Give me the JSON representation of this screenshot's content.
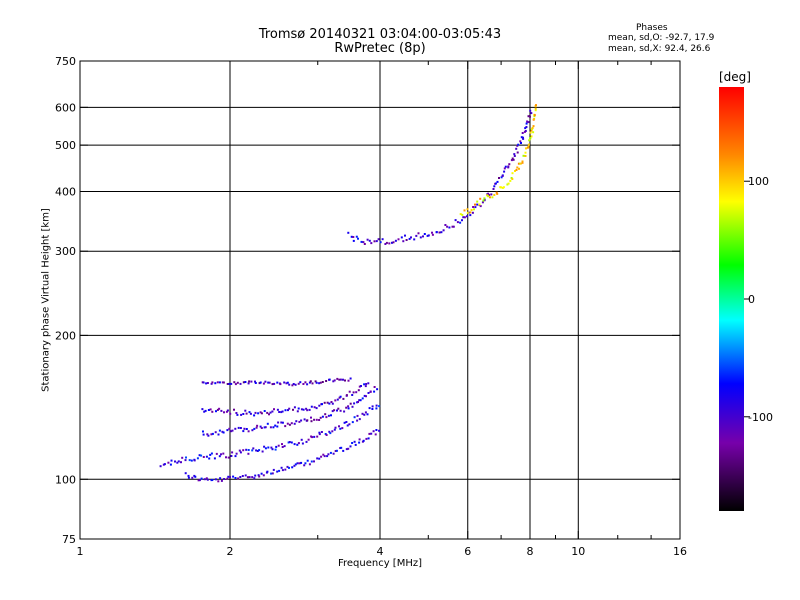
{
  "chart_data": {
    "type": "scatter",
    "title": "Tromsø 20140321 03:04:00-03:05:43",
    "subtitle": "RwPretec (8p)",
    "xlabel": "Frequency [MHz]",
    "ylabel": "Stationary phase Virtual Height [km]",
    "x_scale": "log",
    "y_scale": "log",
    "xlim": [
      1,
      16
    ],
    "ylim": [
      75,
      750
    ],
    "x_ticks": [
      {
        "value": 1,
        "label": "1"
      },
      {
        "value": 2,
        "label": "2"
      },
      {
        "value": 4,
        "label": "4"
      },
      {
        "value": 6,
        "label": "6"
      },
      {
        "value": 8,
        "label": "8"
      },
      {
        "value": 10,
        "label": "10"
      },
      {
        "value": 16,
        "label": "16"
      }
    ],
    "x_minor": [
      3,
      5,
      7,
      9,
      12,
      14
    ],
    "x_grid": [
      2,
      4,
      6,
      8,
      10
    ],
    "y_ticks": [
      {
        "value": 75,
        "label": "75"
      },
      {
        "value": 100,
        "label": "100"
      },
      {
        "value": 200,
        "label": "200"
      },
      {
        "value": 300,
        "label": "300"
      },
      {
        "value": 400,
        "label": "400"
      },
      {
        "value": 500,
        "label": "500"
      },
      {
        "value": 600,
        "label": "600"
      },
      {
        "value": 750,
        "label": "750"
      }
    ],
    "y_grid": [
      100,
      200,
      300,
      400,
      500,
      600
    ],
    "grid": true,
    "phase_stats": {
      "heading": "Phases",
      "o_mode": "mean, sd,O: -92.7, 17.9",
      "x_mode": "mean, sd,X:  92.4, 26.6"
    },
    "colorbar": {
      "label": "[deg]",
      "range": [
        -180,
        180
      ],
      "ticks": [
        {
          "value": 100,
          "label": "100"
        },
        {
          "value": 0,
          "label": "0"
        },
        {
          "value": -100,
          "label": "-100"
        }
      ]
    },
    "traces": [
      {
        "name": "",
        "points": [
          [
            1.62,
            103
          ],
          [
            1.7,
            101
          ],
          [
            1.8,
            100
          ],
          [
            1.9,
            100
          ],
          [
            2.0,
            101
          ],
          [
            2.2,
            102
          ],
          [
            2.4,
            104
          ],
          [
            2.6,
            106
          ],
          [
            2.8,
            108
          ],
          [
            3.0,
            111
          ],
          [
            3.2,
            114
          ],
          [
            3.4,
            117
          ],
          [
            3.6,
            120
          ],
          [
            3.8,
            124
          ],
          [
            4.0,
            128
          ]
        ],
        "phase": -95,
        "spread": 2.5
      },
      {
        "name": "",
        "points": [
          [
            1.45,
            108
          ],
          [
            1.6,
            110
          ],
          [
            1.8,
            112
          ],
          [
            2.0,
            113
          ],
          [
            2.2,
            115
          ],
          [
            2.4,
            117
          ],
          [
            2.6,
            119
          ],
          [
            2.8,
            121
          ],
          [
            3.0,
            124
          ],
          [
            3.2,
            127
          ],
          [
            3.4,
            131
          ],
          [
            3.6,
            135
          ],
          [
            3.8,
            140
          ],
          [
            4.0,
            146
          ]
        ],
        "phase": -90,
        "spread": 3
      },
      {
        "name": "",
        "points": [
          [
            1.75,
            125
          ],
          [
            1.9,
            126
          ],
          [
            2.0,
            127
          ],
          [
            2.2,
            128
          ],
          [
            2.4,
            130
          ],
          [
            2.6,
            131
          ],
          [
            2.8,
            133
          ],
          [
            3.0,
            135
          ],
          [
            3.2,
            138
          ],
          [
            3.4,
            141
          ],
          [
            3.6,
            146
          ],
          [
            3.8,
            152
          ],
          [
            3.95,
            158
          ]
        ],
        "phase": -100,
        "spread": 2.5
      },
      {
        "name": "",
        "points": [
          [
            1.75,
            140
          ],
          [
            1.9,
            140
          ],
          [
            2.0,
            139
          ],
          [
            2.2,
            138
          ],
          [
            2.4,
            139
          ],
          [
            2.6,
            140
          ],
          [
            2.8,
            141
          ],
          [
            3.0,
            143
          ],
          [
            3.2,
            146
          ],
          [
            3.4,
            150
          ],
          [
            3.6,
            155
          ],
          [
            3.8,
            162
          ]
        ],
        "phase": -100,
        "spread": 2.5
      },
      {
        "name": "",
        "points": [
          [
            1.75,
            160
          ],
          [
            1.9,
            160
          ],
          [
            2.05,
            160
          ],
          [
            2.3,
            160
          ],
          [
            2.5,
            159
          ],
          [
            2.7,
            159
          ],
          [
            2.9,
            160
          ],
          [
            3.1,
            161
          ],
          [
            3.3,
            162
          ],
          [
            3.5,
            163
          ]
        ],
        "phase": -105,
        "spread": 1.5
      },
      {
        "name": "",
        "points": [
          [
            3.45,
            325
          ],
          [
            3.6,
            318
          ],
          [
            3.8,
            315
          ],
          [
            4.0,
            316
          ],
          [
            4.3,
            318
          ],
          [
            4.6,
            322
          ],
          [
            4.9,
            326
          ],
          [
            5.2,
            332
          ],
          [
            5.5,
            340
          ],
          [
            5.8,
            352
          ],
          [
            6.1,
            365
          ],
          [
            6.4,
            382
          ],
          [
            6.7,
            405
          ],
          [
            7.0,
            432
          ],
          [
            7.3,
            465
          ],
          [
            7.6,
            505
          ],
          [
            7.8,
            545
          ],
          [
            8.0,
            600
          ]
        ],
        "phase": -100,
        "spread": 3
      },
      {
        "name": "",
        "points": [
          [
            5.8,
            360
          ],
          [
            6.1,
            370
          ],
          [
            6.4,
            385
          ],
          [
            6.8,
            400
          ],
          [
            7.2,
            420
          ],
          [
            7.5,
            445
          ],
          [
            7.8,
            480
          ],
          [
            8.0,
            520
          ],
          [
            8.1,
            570
          ],
          [
            8.2,
            620
          ]
        ],
        "phase": 95,
        "spread": 3
      }
    ]
  }
}
